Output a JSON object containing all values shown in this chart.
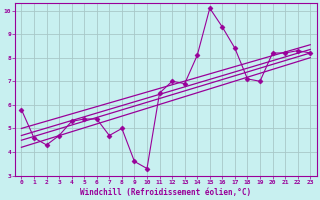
{
  "xlabel": "Windchill (Refroidissement éolien,°C)",
  "bg_color": "#c8f0f0",
  "grid_color": "#a8c8c8",
  "line_color": "#990099",
  "xlim": [
    -0.5,
    23.5
  ],
  "ylim": [
    3,
    10.3
  ],
  "xticks": [
    0,
    1,
    2,
    3,
    4,
    5,
    6,
    7,
    8,
    9,
    10,
    11,
    12,
    13,
    14,
    15,
    16,
    17,
    18,
    19,
    20,
    21,
    22,
    23
  ],
  "yticks": [
    3,
    4,
    5,
    6,
    7,
    8,
    9,
    10
  ],
  "data_x": [
    0,
    1,
    2,
    3,
    4,
    5,
    6,
    7,
    8,
    9,
    10,
    11,
    12,
    13,
    14,
    15,
    16,
    17,
    18,
    19,
    20,
    21,
    22,
    23
  ],
  "data_y": [
    5.8,
    4.6,
    4.3,
    4.7,
    5.3,
    5.4,
    5.4,
    4.7,
    5.0,
    3.6,
    3.3,
    6.5,
    7.0,
    6.9,
    8.1,
    10.1,
    9.3,
    8.4,
    7.1,
    7.0,
    8.2,
    8.2,
    8.3,
    8.2
  ],
  "reg_lines": [
    [
      [
        0,
        23
      ],
      [
        4.2,
        8.0
      ]
    ],
    [
      [
        0,
        23
      ],
      [
        4.5,
        8.2
      ]
    ],
    [
      [
        0,
        23
      ],
      [
        4.7,
        8.35
      ]
    ],
    [
      [
        0,
        23
      ],
      [
        5.0,
        8.55
      ]
    ]
  ]
}
